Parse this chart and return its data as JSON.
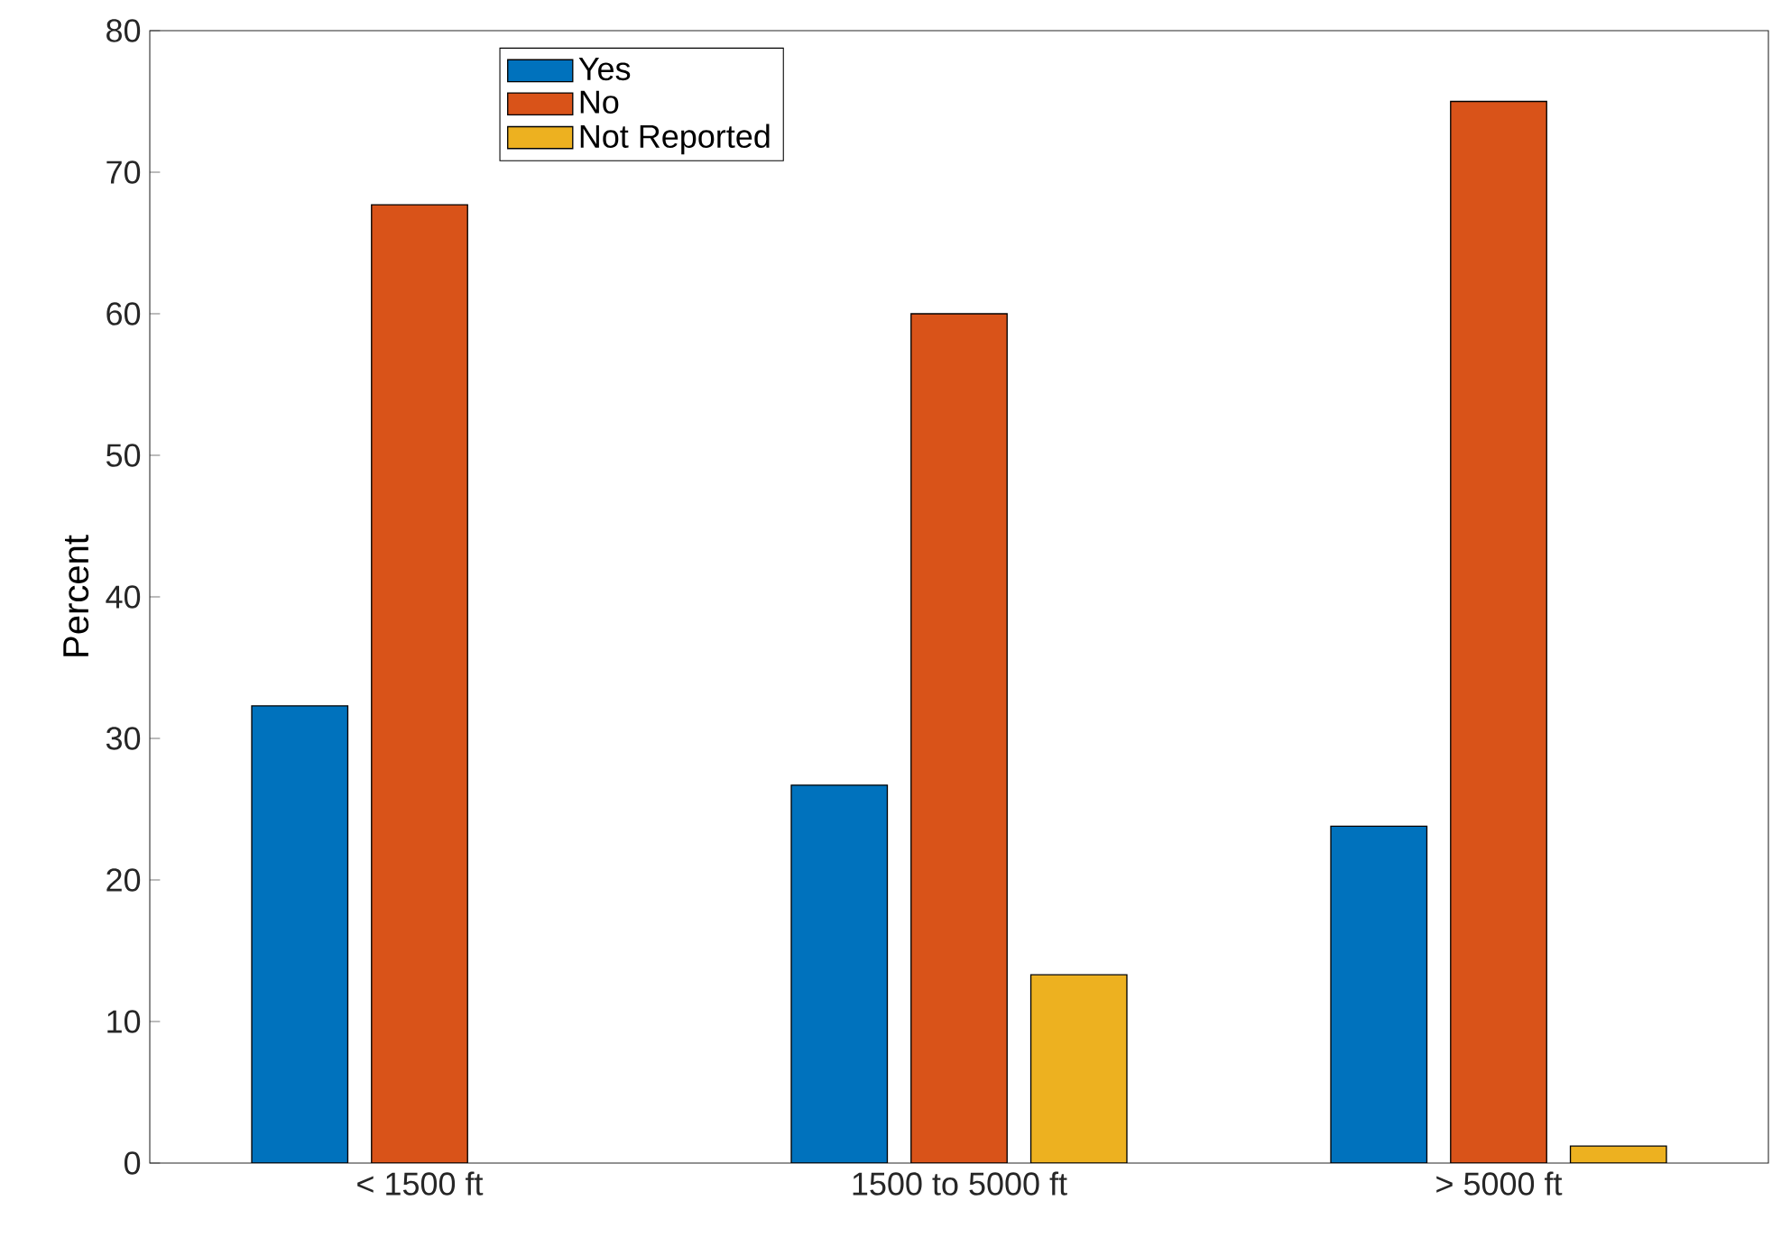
{
  "chart_data": {
    "type": "bar",
    "ylabel": "Percent",
    "categories": [
      "< 1500 ft",
      "1500 to 5000 ft",
      "> 5000 ft"
    ],
    "series": [
      {
        "name": "Yes",
        "color": "#0072bd",
        "values": [
          32.3,
          26.7,
          23.8
        ]
      },
      {
        "name": "No",
        "color": "#d95319",
        "values": [
          67.7,
          60,
          75
        ]
      },
      {
        "name": "Not Reported",
        "color": "#edb120",
        "values": [
          null,
          13.3,
          1.2
        ]
      }
    ],
    "ylim": [
      0,
      80
    ],
    "yticks": [
      0,
      10,
      20,
      30,
      40,
      50,
      60,
      70,
      80
    ],
    "grid": false,
    "legend": "top left"
  }
}
